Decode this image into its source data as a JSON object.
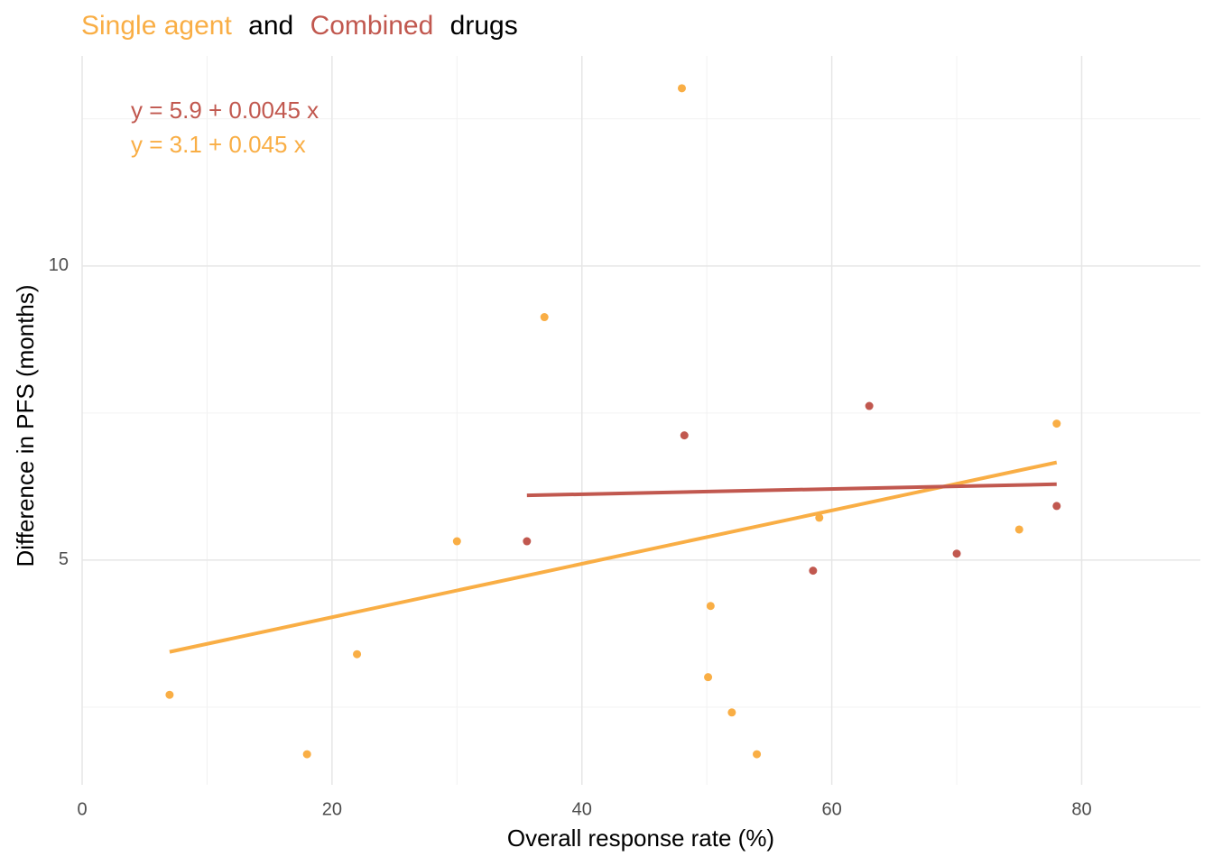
{
  "chart_data": {
    "type": "scatter",
    "title_joins": [
      "and",
      "drugs"
    ],
    "title_color": "#000000",
    "x_label": "Overall response rate (%)",
    "y_label": "Difference in PFS (months)",
    "xlim": [
      0,
      89.5
    ],
    "ylim": [
      1.18,
      13.57
    ],
    "xticks": [
      0,
      20,
      40,
      60,
      80
    ],
    "yticks": [
      5,
      10
    ],
    "xminor": [
      10,
      30,
      50,
      70
    ],
    "yminor": [
      2.5,
      7.5,
      12.5
    ],
    "grid": true,
    "series": [
      {
        "name": "Single agent",
        "color": "#f9ae45",
        "x": [
          48,
          37,
          30,
          22,
          7,
          18,
          50.3,
          50.1,
          52,
          54,
          59,
          75,
          78
        ],
        "values": [
          13.02,
          9.13,
          5.32,
          3.4,
          2.71,
          1.7,
          4.22,
          3.01,
          2.41,
          1.7,
          5.72,
          5.52,
          7.32
        ]
      },
      {
        "name": "Combined",
        "color": "#c1584f",
        "x": [
          35.6,
          48.2,
          63,
          58.5,
          70,
          78
        ],
        "values": [
          5.32,
          7.12,
          7.62,
          4.82,
          5.11,
          5.92
        ]
      }
    ],
    "fits": [
      {
        "color": "#f9ae45",
        "x": [
          7,
          78
        ],
        "values": [
          3.44,
          6.66
        ]
      },
      {
        "color": "#c1584f",
        "x": [
          35.6,
          78
        ],
        "values": [
          6.1,
          6.29
        ]
      }
    ],
    "equations": [
      {
        "text": "y = 5.9 + 0.0045 x",
        "color": "#c1584f"
      },
      {
        "text": "y = 3.1 + 0.045 x",
        "color": "#f9ae45"
      }
    ]
  }
}
